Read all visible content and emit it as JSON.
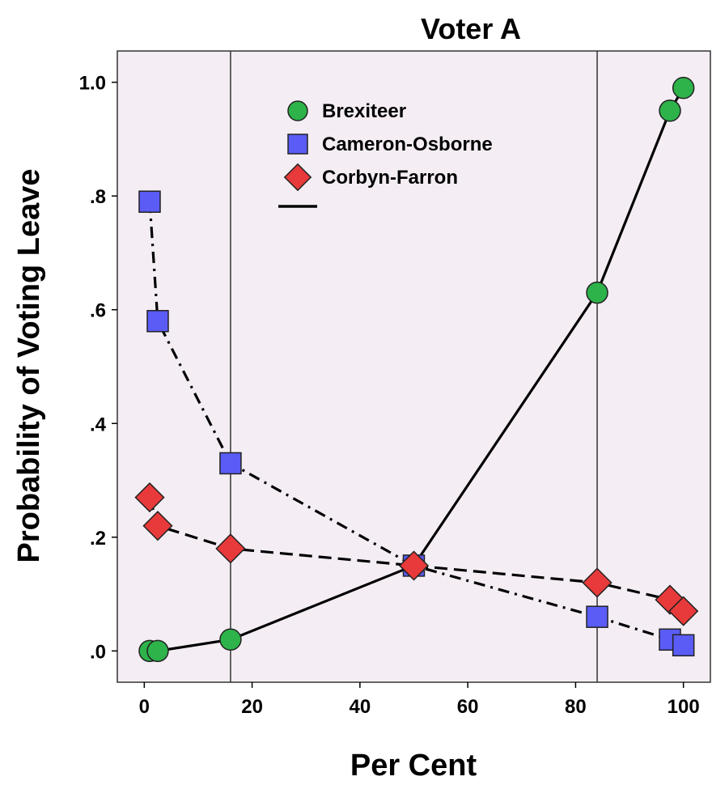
{
  "chart_data": {
    "type": "line",
    "title": "Voter A",
    "xlabel": "Per Cent",
    "ylabel": "Probability of Voting Leave",
    "xlim": [
      -5,
      105
    ],
    "ylim": [
      -0.055,
      1.055
    ],
    "x_ticks": [
      0,
      20,
      40,
      60,
      80,
      100
    ],
    "x_tick_labels": [
      "0",
      "20",
      "40",
      "60",
      "80",
      "100"
    ],
    "y_ticks": [
      0,
      0.2,
      0.4,
      0.6,
      0.8,
      1.0
    ],
    "y_tick_labels": [
      ".0",
      ".2",
      ".4",
      ".6",
      ".8",
      "1.0"
    ],
    "reference_lines_x": [
      16,
      84
    ],
    "grid": false,
    "legend_position": "top-center",
    "background_color": "#f4eef4",
    "series": [
      {
        "name": "Brexiteer",
        "marker": "circle",
        "color": "#2db34a",
        "line_style": "solid",
        "points": [
          [
            1,
            0.0
          ],
          [
            2.5,
            0.0
          ],
          [
            16,
            0.02
          ],
          [
            50,
            0.15
          ],
          [
            84,
            0.63
          ],
          [
            97.5,
            0.95
          ],
          [
            100,
            0.99
          ]
        ]
      },
      {
        "name": "Cameron-Osborne",
        "marker": "square",
        "color": "#5a5cf5",
        "line_style": "dashdot",
        "points": [
          [
            1,
            0.79
          ],
          [
            2.5,
            0.58
          ],
          [
            16,
            0.33
          ],
          [
            50,
            0.15
          ],
          [
            84,
            0.06
          ],
          [
            97.5,
            0.02
          ],
          [
            100,
            0.01
          ]
        ]
      },
      {
        "name": "Corbyn-Farron",
        "marker": "diamond",
        "color": "#e83a3a",
        "line_style": "dashed",
        "points": [
          [
            1,
            0.27
          ],
          [
            2.5,
            0.22
          ],
          [
            16,
            0.18
          ],
          [
            50,
            0.15
          ],
          [
            84,
            0.12
          ],
          [
            97.5,
            0.09
          ],
          [
            100,
            0.07
          ]
        ]
      }
    ]
  }
}
